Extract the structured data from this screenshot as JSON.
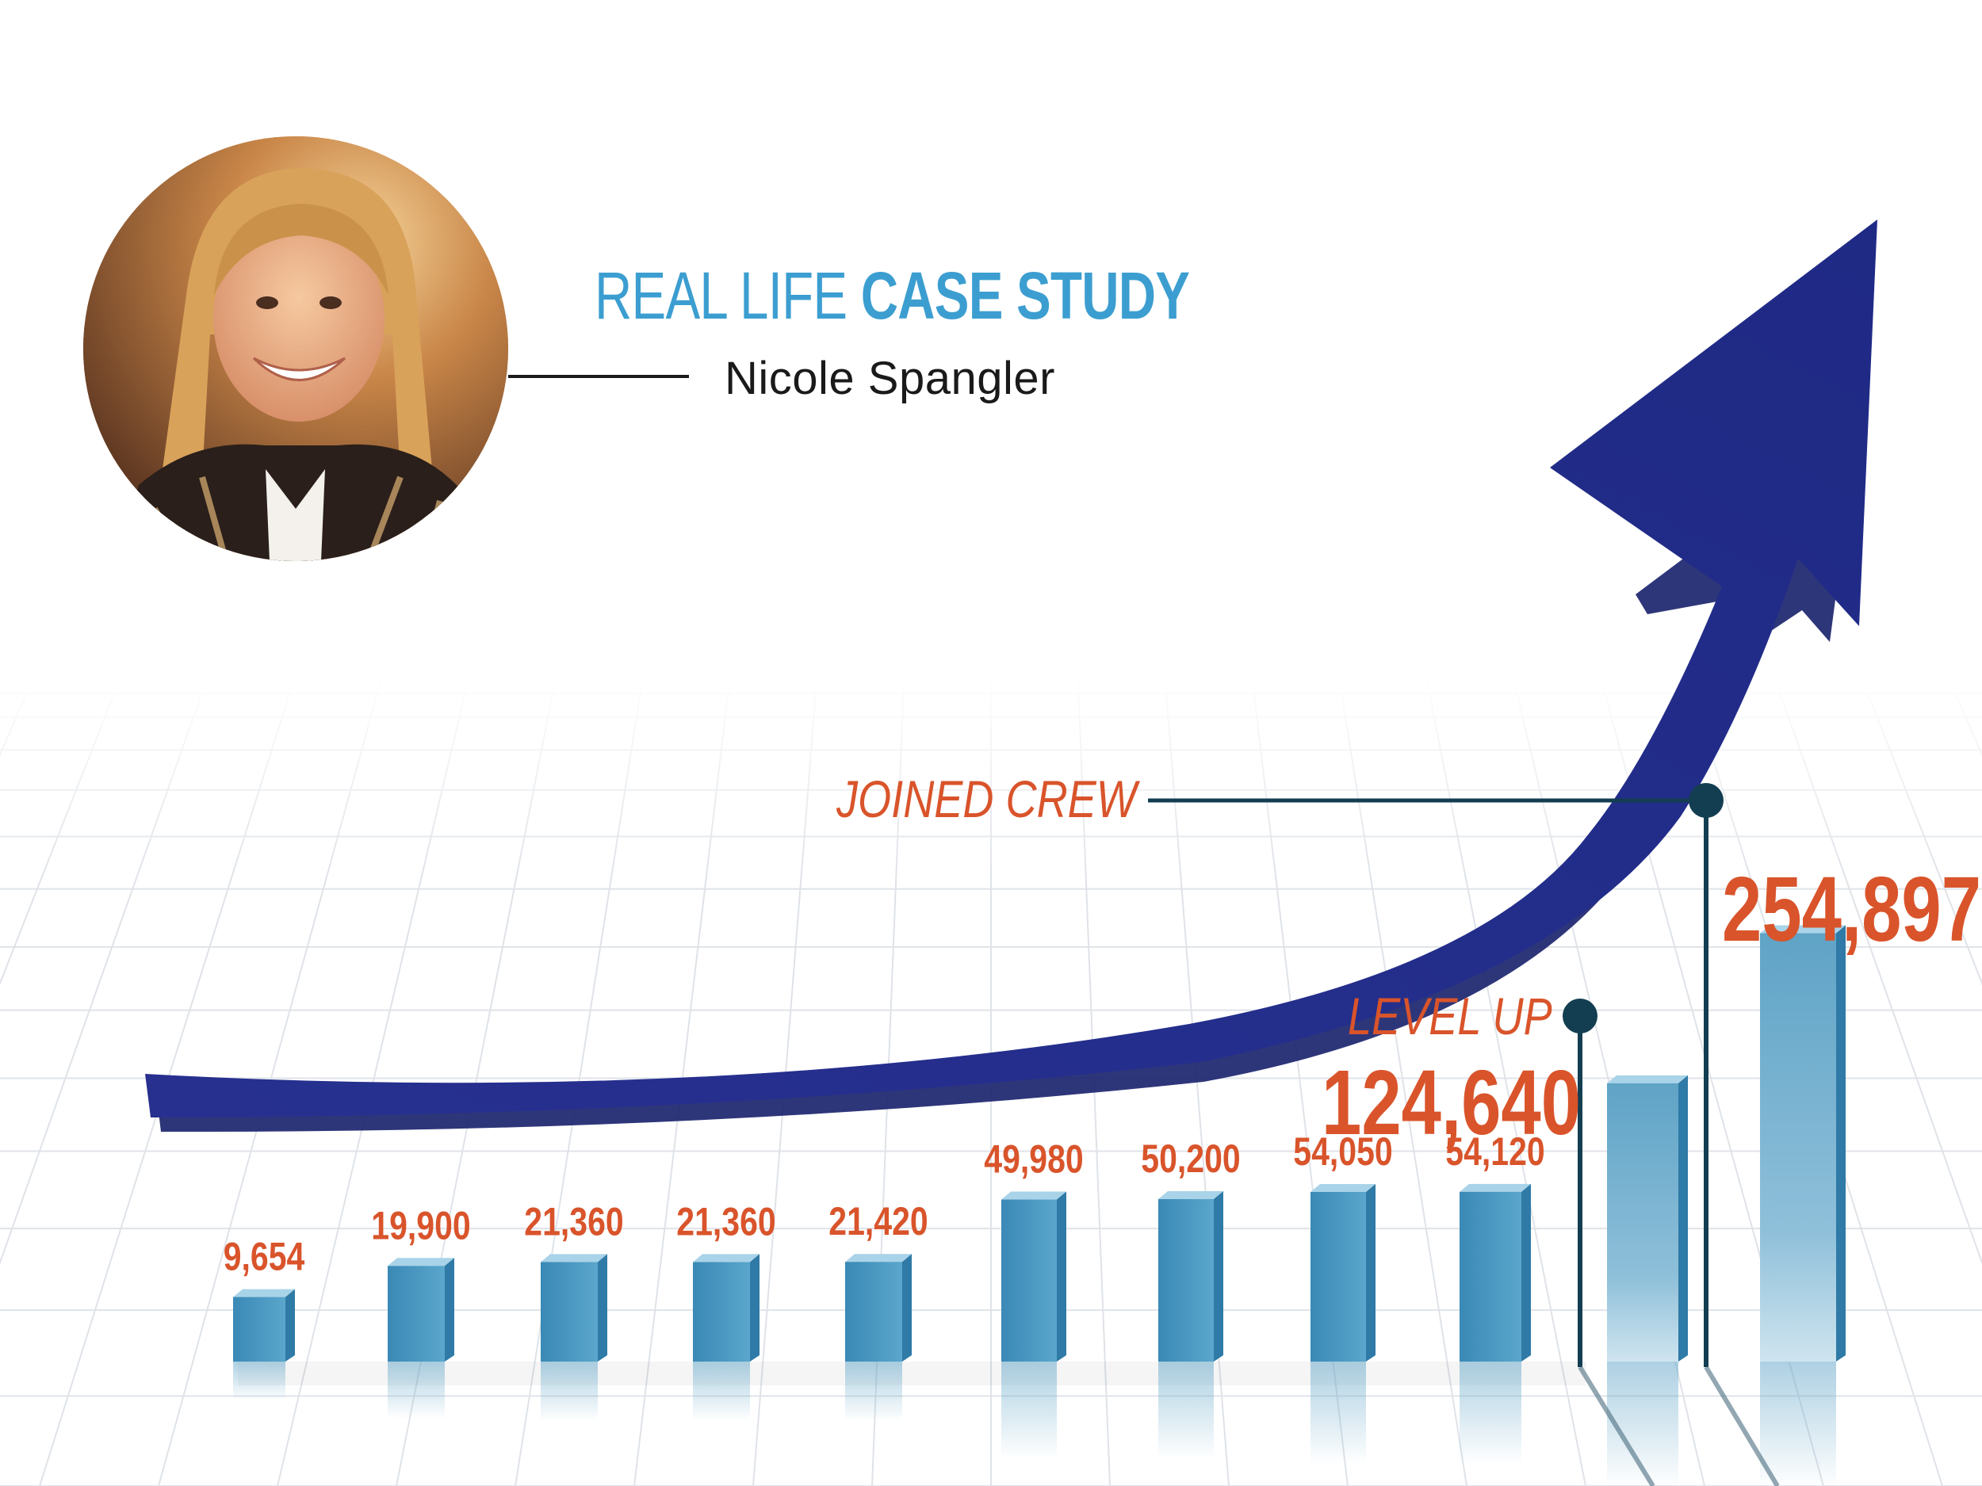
{
  "header": {
    "title_light": "REAL LIFE ",
    "title_bold": "CASE STUDY",
    "subtitle": "Nicole Spangler"
  },
  "photo": {
    "icon": "portrait-photo",
    "description_alt": "Nicole Spangler"
  },
  "annotations": {
    "joined": "JOINED CREW",
    "level": "LEVEL UP",
    "value_level": "124,640",
    "value_joined": "254,897"
  },
  "colors": {
    "accent_blue": "#3c9ed0",
    "arrow_navy": "#232e8c",
    "label_orange": "#d9542b",
    "marker_teal": "#133e52",
    "bar_blue": "#4a97bd"
  },
  "chart_data": {
    "type": "bar",
    "title": "",
    "xlabel": "",
    "ylabel": "",
    "values": [
      9654,
      19900,
      21360,
      21360,
      21420,
      49980,
      50200,
      54050,
      54120,
      124640,
      254897
    ],
    "value_labels": [
      "9,654",
      "19,900",
      "21,360",
      "21,360",
      "21,420",
      "49,980",
      "50,200",
      "54,050",
      "54,120",
      "",
      ""
    ],
    "trend": "rising-arrow",
    "grid": true,
    "legend": "none"
  }
}
